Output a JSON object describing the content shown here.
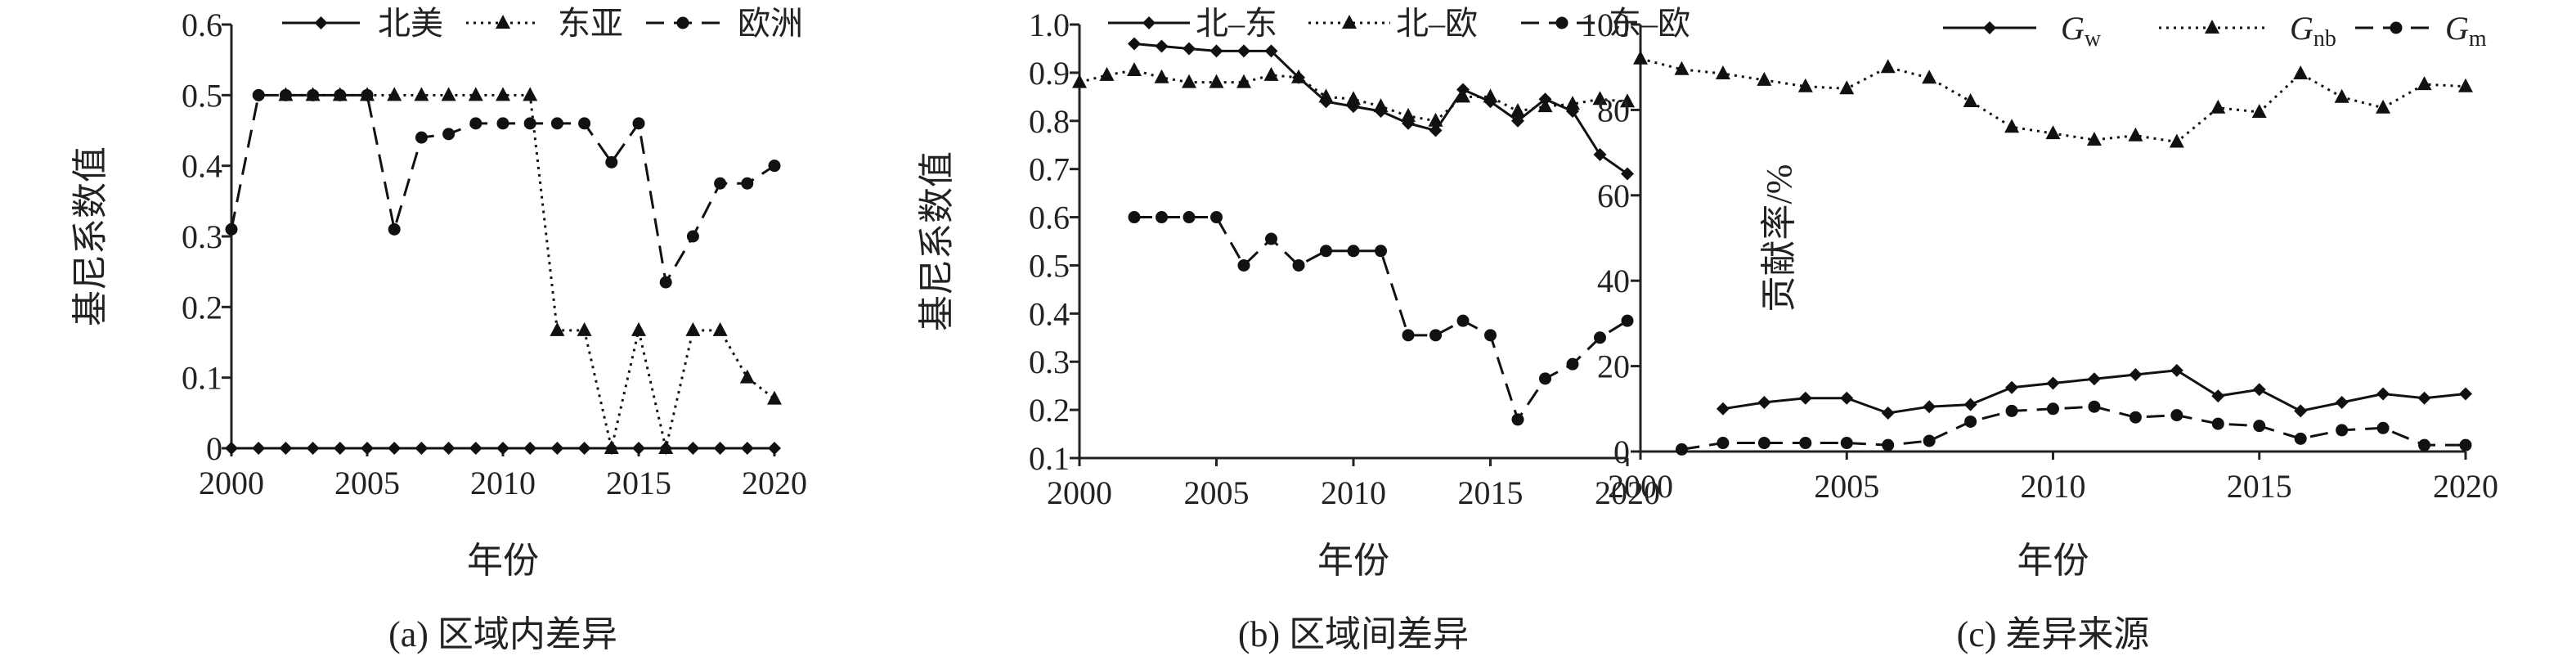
{
  "figures": [
    {
      "caption": "(a) 区域内差异",
      "xlabel": "年份",
      "ylabel": "基尼系数值",
      "legend": [
        {
          "label": "北美"
        },
        {
          "label": "东亚"
        },
        {
          "label": "欧洲"
        }
      ]
    },
    {
      "caption": "(b) 区域间差异",
      "xlabel": "年份",
      "ylabel": "基尼系数值",
      "legend": [
        {
          "label": "北–东"
        },
        {
          "label": "北–欧"
        },
        {
          "label": "东–欧"
        }
      ]
    },
    {
      "caption": "(c) 差异来源",
      "xlabel": "年份",
      "ylabel": "贡献率/%",
      "legend": [
        {
          "main": "G",
          "sub": "w"
        },
        {
          "main": "G",
          "sub": "nb"
        },
        {
          "main": "G",
          "sub": "m"
        }
      ]
    }
  ],
  "chart_data": [
    {
      "type": "line",
      "title": "(a) 区域内差异",
      "xlabel": "年份",
      "ylabel": "基尼系数值",
      "xlim": [
        2000,
        2020
      ],
      "ylim": [
        0,
        0.6
      ],
      "xticks": [
        2000,
        2005,
        2010,
        2015,
        2020
      ],
      "yticks": [
        0,
        0.1,
        0.2,
        0.3,
        0.4,
        0.5,
        0.6
      ],
      "ytick_labels": [
        "0",
        "0.1",
        "0.2",
        "0.3",
        "0.4",
        "0.5",
        "0.6"
      ],
      "legend_position": "top",
      "series": [
        {
          "name": "北美",
          "style": "solid",
          "marker": "diamond",
          "x": [
            2000,
            2001,
            2002,
            2003,
            2004,
            2005,
            2006,
            2007,
            2008,
            2009,
            2010,
            2011,
            2012,
            2013,
            2014,
            2015,
            2016,
            2017,
            2018,
            2019,
            2020
          ],
          "values": [
            0,
            0,
            0,
            0,
            0,
            0,
            0,
            0,
            0,
            0,
            0,
            0,
            0,
            0,
            0,
            0,
            0,
            0,
            0,
            0,
            0
          ]
        },
        {
          "name": "东亚",
          "style": "dotted",
          "marker": "triangle",
          "x": [
            2002,
            2003,
            2004,
            2005,
            2006,
            2007,
            2008,
            2009,
            2010,
            2011,
            2012,
            2013,
            2014,
            2015,
            2016,
            2017,
            2018,
            2019,
            2020
          ],
          "values": [
            0.5,
            0.5,
            0.5,
            0.5,
            0.5,
            0.5,
            0.5,
            0.5,
            0.5,
            0.5,
            0.167,
            0.167,
            0,
            0.167,
            0,
            0.167,
            0.167,
            0.1,
            0.07
          ]
        },
        {
          "name": "欧洲",
          "style": "dashed",
          "marker": "circle",
          "x": [
            2000,
            2001,
            2002,
            2003,
            2004,
            2005,
            2006,
            2007,
            2008,
            2009,
            2010,
            2011,
            2012,
            2013,
            2014,
            2015,
            2016,
            2017,
            2018,
            2019,
            2020
          ],
          "values": [
            0.31,
            0.5,
            0.5,
            0.5,
            0.5,
            0.5,
            0.31,
            0.44,
            0.445,
            0.46,
            0.46,
            0.46,
            0.46,
            0.46,
            0.405,
            0.46,
            0.235,
            0.3,
            0.375,
            0.375,
            0.4
          ]
        }
      ]
    },
    {
      "type": "line",
      "title": "(b) 区域间差异",
      "xlabel": "年份",
      "ylabel": "基尼系数值",
      "xlim": [
        2000,
        2020
      ],
      "ylim": [
        0.1,
        1.0
      ],
      "xticks": [
        2000,
        2005,
        2010,
        2015,
        2020
      ],
      "yticks": [
        0.1,
        0.2,
        0.3,
        0.4,
        0.5,
        0.6,
        0.7,
        0.8,
        0.9,
        1.0
      ],
      "ytick_labels": [
        "0.1",
        "0.2",
        "0.3",
        "0.4",
        "0.5",
        "0.6",
        "0.7",
        "0.8",
        "0.9",
        "1.0"
      ],
      "legend_position": "top",
      "series": [
        {
          "name": "北–东",
          "style": "solid",
          "marker": "diamond",
          "x": [
            2002,
            2003,
            2004,
            2005,
            2006,
            2007,
            2008,
            2009,
            2010,
            2011,
            2012,
            2013,
            2014,
            2015,
            2016,
            2017,
            2018,
            2019,
            2020
          ],
          "values": [
            0.96,
            0.955,
            0.95,
            0.945,
            0.945,
            0.945,
            0.89,
            0.84,
            0.83,
            0.82,
            0.795,
            0.78,
            0.865,
            0.84,
            0.8,
            0.845,
            0.82,
            0.73,
            0.69
          ]
        },
        {
          "name": "北–欧",
          "style": "dotted",
          "marker": "triangle",
          "x": [
            2000,
            2001,
            2002,
            2003,
            2004,
            2005,
            2006,
            2007,
            2008,
            2009,
            2010,
            2011,
            2012,
            2013,
            2014,
            2015,
            2016,
            2017,
            2018,
            2019,
            2020
          ],
          "values": [
            0.88,
            0.895,
            0.905,
            0.89,
            0.88,
            0.88,
            0.88,
            0.895,
            0.89,
            0.85,
            0.845,
            0.83,
            0.81,
            0.8,
            0.85,
            0.85,
            0.82,
            0.83,
            0.835,
            0.845,
            0.84
          ]
        },
        {
          "name": "东–欧",
          "style": "dashed",
          "marker": "circle",
          "x": [
            2002,
            2003,
            2004,
            2005,
            2006,
            2007,
            2008,
            2009,
            2010,
            2011,
            2012,
            2013,
            2014,
            2015,
            2016,
            2017,
            2018,
            2019,
            2020
          ],
          "values": [
            0.6,
            0.6,
            0.6,
            0.6,
            0.5,
            0.555,
            0.5,
            0.53,
            0.53,
            0.53,
            0.355,
            0.355,
            0.385,
            0.355,
            0.18,
            0.265,
            0.295,
            0.35,
            0.385
          ]
        }
      ]
    },
    {
      "type": "line",
      "title": "(c) 差异来源",
      "xlabel": "年份",
      "ylabel": "贡献率/%",
      "xlim": [
        2000,
        2020
      ],
      "ylim": [
        0,
        100
      ],
      "xticks": [
        2000,
        2005,
        2010,
        2015,
        2020
      ],
      "yticks": [
        0,
        20,
        40,
        60,
        80,
        100
      ],
      "ytick_labels": [
        "0",
        "20",
        "40",
        "60",
        "80",
        "100"
      ],
      "legend_position": "top",
      "series": [
        {
          "name": "Gw",
          "style": "solid",
          "marker": "diamond",
          "x": [
            2002,
            2003,
            2004,
            2005,
            2006,
            2007,
            2008,
            2009,
            2010,
            2011,
            2012,
            2013,
            2014,
            2015,
            2016,
            2017,
            2018,
            2019,
            2020
          ],
          "values": [
            10,
            11.5,
            12.5,
            12.5,
            9,
            10.5,
            11,
            15,
            16,
            17,
            18,
            19,
            13,
            14.5,
            9.5,
            11.5,
            13.5,
            12.5,
            13.5
          ]
        },
        {
          "name": "Gnb",
          "style": "dotted",
          "marker": "triangle",
          "x": [
            2000,
            2001,
            2002,
            2003,
            2004,
            2005,
            2006,
            2007,
            2008,
            2009,
            2010,
            2011,
            2012,
            2013,
            2014,
            2015,
            2016,
            2017,
            2018,
            2019,
            2020
          ],
          "values": [
            92,
            89.5,
            88.5,
            87,
            85.5,
            85,
            90,
            87.5,
            82,
            76,
            74.5,
            73,
            74,
            72.5,
            80.5,
            79.5,
            88.5,
            83,
            80.5,
            86,
            85.5
          ]
        },
        {
          "name": "Gm",
          "style": "dashed",
          "marker": "circle",
          "x": [
            2001,
            2002,
            2003,
            2004,
            2005,
            2006,
            2007,
            2008,
            2009,
            2010,
            2011,
            2012,
            2013,
            2014,
            2015,
            2016,
            2017,
            2018,
            2019,
            2020
          ],
          "values": [
            0.5,
            2,
            2,
            2,
            2,
            1.5,
            2.5,
            7,
            9.5,
            10,
            10.5,
            8,
            8.5,
            6.5,
            6,
            3,
            5,
            5.5,
            1.5,
            1.5
          ]
        }
      ]
    }
  ]
}
